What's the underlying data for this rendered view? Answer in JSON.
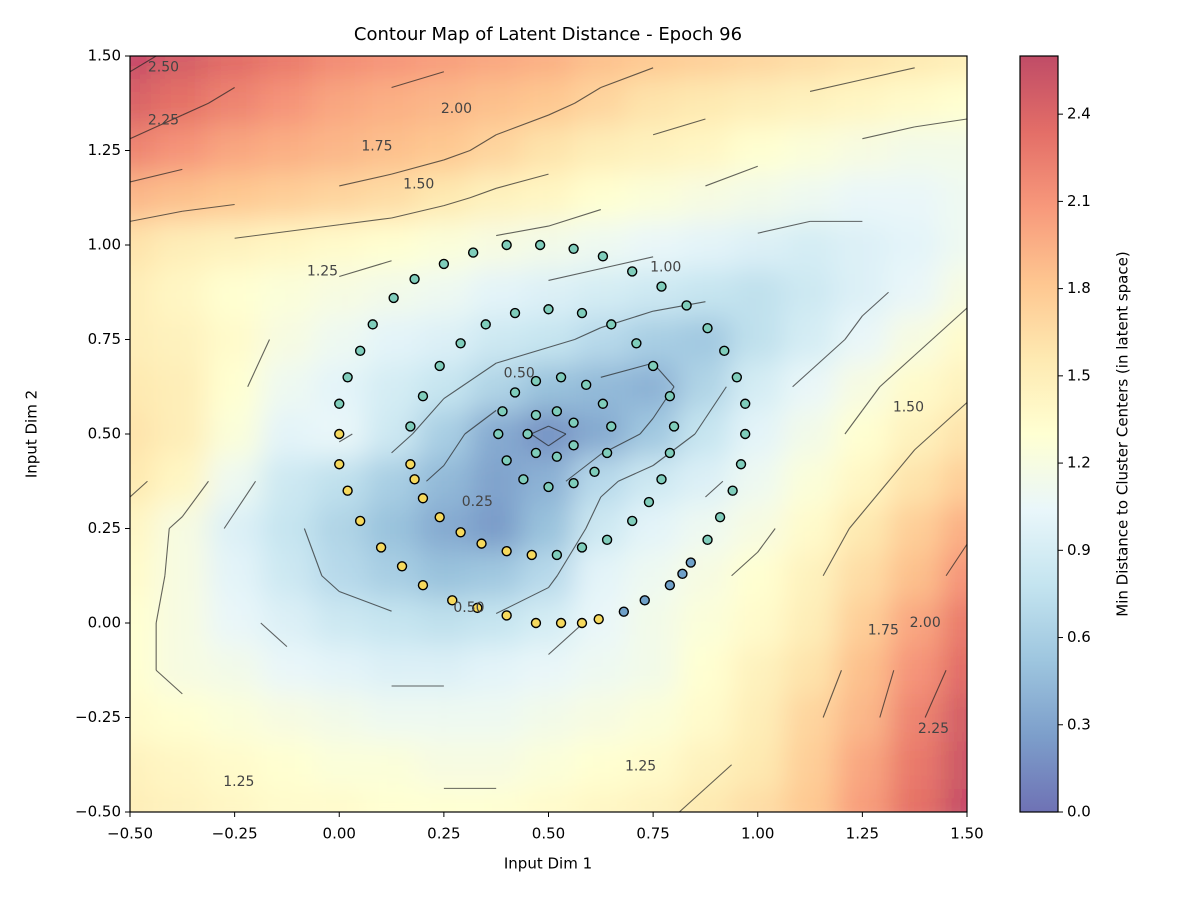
{
  "chart_data": {
    "type": "contour",
    "title": "Contour Map of Latent Distance - Epoch 96",
    "x_label": "Input Dim 1",
    "y_label": "Input Dim 2",
    "colorbar_label": "Min Distance to Cluster Centers (in latent space)",
    "xlim": [
      -0.5,
      1.5
    ],
    "ylim": [
      -0.5,
      1.5
    ],
    "clim": [
      0,
      2.6
    ],
    "xticks": [
      {
        "value": -0.5,
        "label": "−0.50"
      },
      {
        "value": -0.25,
        "label": "−0.25"
      },
      {
        "value": 0,
        "label": "0.00"
      },
      {
        "value": 0.25,
        "label": "0.25"
      },
      {
        "value": 0.5,
        "label": "0.50"
      },
      {
        "value": 0.75,
        "label": "0.75"
      },
      {
        "value": 1,
        "label": "1.00"
      },
      {
        "value": 1.25,
        "label": "1.25"
      },
      {
        "value": 1.5,
        "label": "1.50"
      }
    ],
    "yticks": [
      {
        "value": -0.5,
        "label": "−0.50"
      },
      {
        "value": -0.25,
        "label": "−0.25"
      },
      {
        "value": 0,
        "label": "0.00"
      },
      {
        "value": 0.25,
        "label": "0.25"
      },
      {
        "value": 0.5,
        "label": "0.50"
      },
      {
        "value": 0.75,
        "label": "0.75"
      },
      {
        "value": 1,
        "label": "1.00"
      },
      {
        "value": 1.25,
        "label": "1.25"
      },
      {
        "value": 1.5,
        "label": "1.50"
      }
    ],
    "cticks": [
      {
        "value": 0,
        "label": "0.0"
      },
      0.3,
      0.6,
      0.9,
      1.2,
      1.5,
      1.8,
      2.1,
      2.4
    ],
    "colormap": [
      "#313695",
      "#4575b4",
      "#74add1",
      "#abd9e9",
      "#e0f3f8",
      "#ffffbf",
      "#fee090",
      "#fdae61",
      "#f46d43",
      "#d73027",
      "#a50026"
    ],
    "levels": [
      0.25,
      0.5,
      0.75,
      1,
      1.25,
      1.5,
      1.75,
      2,
      2.25,
      2.5
    ],
    "grid_x": [
      -0.5,
      -0.375,
      -0.25,
      -0.125,
      0,
      0.125,
      0.25,
      0.375,
      0.5,
      0.625,
      0.75,
      0.875,
      1,
      1.125,
      1.25,
      1.375,
      1.5
    ],
    "grid_y": [
      1.5,
      1.375,
      1.25,
      1.125,
      1,
      0.875,
      0.75,
      0.625,
      0.5,
      0.375,
      0.25,
      0.125,
      0,
      -0.125,
      -0.25,
      -0.375,
      -0.5
    ],
    "z": [
      [
        2.55,
        2.45,
        2.35,
        2.25,
        2.15,
        2.1,
        2.05,
        2.0,
        1.95,
        1.85,
        1.8,
        1.75,
        1.7,
        1.65,
        1.6,
        1.55,
        1.5
      ],
      [
        2.4,
        2.3,
        2.2,
        2.1,
        2.0,
        1.95,
        1.9,
        1.85,
        1.8,
        1.7,
        1.6,
        1.55,
        1.5,
        1.45,
        1.4,
        1.35,
        1.3
      ],
      [
        2.2,
        2.1,
        2.0,
        1.95,
        1.9,
        1.85,
        1.8,
        1.7,
        1.6,
        1.5,
        1.45,
        1.4,
        1.3,
        1.25,
        1.2,
        1.15,
        1.15
      ],
      [
        1.9,
        1.85,
        1.8,
        1.75,
        1.7,
        1.65,
        1.55,
        1.45,
        1.4,
        1.3,
        1.25,
        1.2,
        1.15,
        1.1,
        1.05,
        1.05,
        1.1
      ],
      [
        1.6,
        1.5,
        1.45,
        1.4,
        1.35,
        1.3,
        1.25,
        1.2,
        1.15,
        1.1,
        1.05,
        1.0,
        0.95,
        0.9,
        0.95,
        1.0,
        1.1
      ],
      [
        1.5,
        1.4,
        1.3,
        1.25,
        1.2,
        1.15,
        1.1,
        1.0,
        0.95,
        0.9,
        0.85,
        0.8,
        0.75,
        0.85,
        0.95,
        1.05,
        1.2
      ],
      [
        1.5,
        1.45,
        1.35,
        1.2,
        1.1,
        1.0,
        0.95,
        0.85,
        0.8,
        0.7,
        0.6,
        0.55,
        0.75,
        0.9,
        1.05,
        1.2,
        1.35
      ],
      [
        1.55,
        1.5,
        1.3,
        1.1,
        1.0,
        0.9,
        0.8,
        0.65,
        0.5,
        0.45,
        0.4,
        0.65,
        0.9,
        1.05,
        1.2,
        1.35,
        1.45
      ],
      [
        1.6,
        1.5,
        1.25,
        1.0,
        1.05,
        0.85,
        0.6,
        0.35,
        0.2,
        0.35,
        0.55,
        0.8,
        1.0,
        1.15,
        1.3,
        1.45,
        1.6
      ],
      [
        1.55,
        1.4,
        1.1,
        0.85,
        0.75,
        0.6,
        0.45,
        0.3,
        0.4,
        0.7,
        0.85,
        0.95,
        1.1,
        1.25,
        1.4,
        1.6,
        1.75
      ],
      [
        1.4,
        1.2,
        0.95,
        0.8,
        0.65,
        0.5,
        0.35,
        0.25,
        0.5,
        0.85,
        1.0,
        1.1,
        1.2,
        1.35,
        1.55,
        1.75,
        1.95
      ],
      [
        1.35,
        1.2,
        1.0,
        0.85,
        0.7,
        0.6,
        0.5,
        0.55,
        0.7,
        1.0,
        1.1,
        1.2,
        1.3,
        1.45,
        1.65,
        1.85,
        2.1
      ],
      [
        1.3,
        1.2,
        1.05,
        0.95,
        0.85,
        0.8,
        0.75,
        0.8,
        0.9,
        1.05,
        1.15,
        1.25,
        1.35,
        1.5,
        1.75,
        2.0,
        2.25
      ],
      [
        1.3,
        1.2,
        1.15,
        1.05,
        1.0,
        0.95,
        0.95,
        1.0,
        1.05,
        1.1,
        1.15,
        1.3,
        1.45,
        1.6,
        1.85,
        2.1,
        2.35
      ],
      [
        1.35,
        1.3,
        1.25,
        1.2,
        1.15,
        1.1,
        1.1,
        1.1,
        1.15,
        1.2,
        1.25,
        1.35,
        1.5,
        1.7,
        1.9,
        2.2,
        2.45
      ],
      [
        1.45,
        1.4,
        1.35,
        1.3,
        1.25,
        1.25,
        1.2,
        1.2,
        1.25,
        1.3,
        1.35,
        1.45,
        1.55,
        1.75,
        2.0,
        2.25,
        2.5
      ],
      [
        1.5,
        1.45,
        1.4,
        1.35,
        1.35,
        1.3,
        1.3,
        1.3,
        1.35,
        1.4,
        1.45,
        1.55,
        1.65,
        1.8,
        2.05,
        2.3,
        2.55
      ]
    ],
    "contour_labels": [
      {
        "label": "2.50",
        "x": -0.42,
        "y": 1.47
      },
      {
        "label": "2.25",
        "x": -0.42,
        "y": 1.33
      },
      {
        "label": "2.00",
        "x": 0.28,
        "y": 1.36
      },
      {
        "label": "1.75",
        "x": 0.09,
        "y": 1.26
      },
      {
        "label": "1.50",
        "x": 0.19,
        "y": 1.16
      },
      {
        "label": "1.25",
        "x": -0.04,
        "y": 0.93
      },
      {
        "label": "1.00",
        "x": 0.78,
        "y": 0.94
      },
      {
        "label": "0.50",
        "x": 0.43,
        "y": 0.66
      },
      {
        "label": "0.25",
        "x": 0.33,
        "y": 0.32
      },
      {
        "label": "0.50",
        "x": 0.31,
        "y": 0.04
      },
      {
        "label": "1.25",
        "x": -0.24,
        "y": -0.42
      },
      {
        "label": "1.25",
        "x": 0.72,
        "y": -0.38
      },
      {
        "label": "1.50",
        "x": 1.36,
        "y": 0.57
      },
      {
        "label": "1.75",
        "x": 1.3,
        "y": -0.02
      },
      {
        "label": "2.00",
        "x": 1.4,
        "y": 0.0
      },
      {
        "label": "2.25",
        "x": 1.42,
        "y": -0.28
      }
    ],
    "series": [
      {
        "color": "#7fcdbb",
        "x": [
          0.0,
          0.02,
          0.05,
          0.08,
          0.13,
          0.18,
          0.25,
          0.32,
          0.4,
          0.48,
          0.56,
          0.63,
          0.7,
          0.77,
          0.83,
          0.88,
          0.92,
          0.95,
          0.97,
          0.97,
          0.96,
          0.94,
          0.91,
          0.88,
          0.17,
          0.2,
          0.24,
          0.29,
          0.35,
          0.42,
          0.5,
          0.58,
          0.65,
          0.71,
          0.75,
          0.79,
          0.8,
          0.79,
          0.77,
          0.74,
          0.7,
          0.64,
          0.58,
          0.52,
          0.38,
          0.39,
          0.42,
          0.47,
          0.53,
          0.59,
          0.63,
          0.65,
          0.64,
          0.61,
          0.56,
          0.5,
          0.44,
          0.4,
          0.45,
          0.47,
          0.52,
          0.56,
          0.56,
          0.52,
          0.47
        ],
        "y": [
          0.58,
          0.65,
          0.72,
          0.79,
          0.86,
          0.91,
          0.95,
          0.98,
          1.0,
          1.0,
          0.99,
          0.97,
          0.93,
          0.89,
          0.84,
          0.78,
          0.72,
          0.65,
          0.58,
          0.5,
          0.42,
          0.35,
          0.28,
          0.22,
          0.52,
          0.6,
          0.68,
          0.74,
          0.79,
          0.82,
          0.83,
          0.82,
          0.79,
          0.74,
          0.68,
          0.6,
          0.52,
          0.45,
          0.38,
          0.32,
          0.27,
          0.22,
          0.2,
          0.18,
          0.5,
          0.56,
          0.61,
          0.64,
          0.65,
          0.63,
          0.58,
          0.52,
          0.45,
          0.4,
          0.37,
          0.36,
          0.38,
          0.43,
          0.5,
          0.55,
          0.56,
          0.53,
          0.47,
          0.44,
          0.45
        ]
      },
      {
        "color": "#f6d95d",
        "x": [
          0.0,
          0.0,
          0.02,
          0.05,
          0.1,
          0.15,
          0.2,
          0.27,
          0.33,
          0.4,
          0.47,
          0.53,
          0.58,
          0.62,
          0.17,
          0.18,
          0.2,
          0.24,
          0.29,
          0.34,
          0.4,
          0.46
        ],
        "y": [
          0.5,
          0.42,
          0.35,
          0.27,
          0.2,
          0.15,
          0.1,
          0.06,
          0.04,
          0.02,
          0.0,
          0.0,
          0.0,
          0.01,
          0.42,
          0.38,
          0.33,
          0.28,
          0.24,
          0.21,
          0.19,
          0.18
        ]
      },
      {
        "color": "#6fa0c8",
        "x": [
          0.68,
          0.73,
          0.79,
          0.82,
          0.84
        ],
        "y": [
          0.03,
          0.06,
          0.1,
          0.13,
          0.16
        ]
      }
    ]
  }
}
